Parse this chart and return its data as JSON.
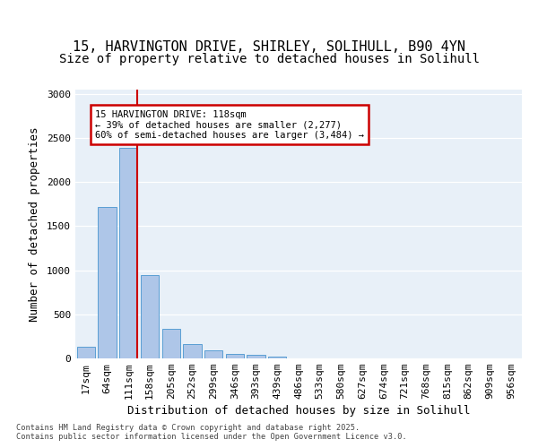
{
  "title_line1": "15, HARVINGTON DRIVE, SHIRLEY, SOLIHULL, B90 4YN",
  "title_line2": "Size of property relative to detached houses in Solihull",
  "xlabel": "Distribution of detached houses by size in Solihull",
  "ylabel": "Number of detached properties",
  "categories": [
    "17sqm",
    "64sqm",
    "111sqm",
    "158sqm",
    "205sqm",
    "252sqm",
    "299sqm",
    "346sqm",
    "393sqm",
    "439sqm",
    "486sqm",
    "533sqm",
    "580sqm",
    "627sqm",
    "674sqm",
    "721sqm",
    "768sqm",
    "815sqm",
    "862sqm",
    "909sqm",
    "956sqm"
  ],
  "values": [
    130,
    1720,
    2390,
    950,
    340,
    160,
    90,
    50,
    40,
    25,
    0,
    0,
    0,
    0,
    0,
    0,
    0,
    0,
    0,
    0,
    0
  ],
  "bar_color": "#aec6e8",
  "bar_edgecolor": "#5a9fd4",
  "vline_x": 2.42,
  "vline_color": "#cc0000",
  "annotation_text": "15 HARVINGTON DRIVE: 118sqm\n← 39% of detached houses are smaller (2,277)\n60% of semi-detached houses are larger (3,484) →",
  "annotation_box_facecolor": "#ffffff",
  "annotation_box_edgecolor": "#cc0000",
  "ylim": [
    0,
    3050
  ],
  "yticks": [
    0,
    500,
    1000,
    1500,
    2000,
    2500,
    3000
  ],
  "background_color": "#e8f0f8",
  "footer_text": "Contains HM Land Registry data © Crown copyright and database right 2025.\nContains public sector information licensed under the Open Government Licence v3.0.",
  "title_fontsize": 11,
  "subtitle_fontsize": 10,
  "tick_fontsize": 8,
  "label_fontsize": 9,
  "annot_fontsize": 7.5
}
